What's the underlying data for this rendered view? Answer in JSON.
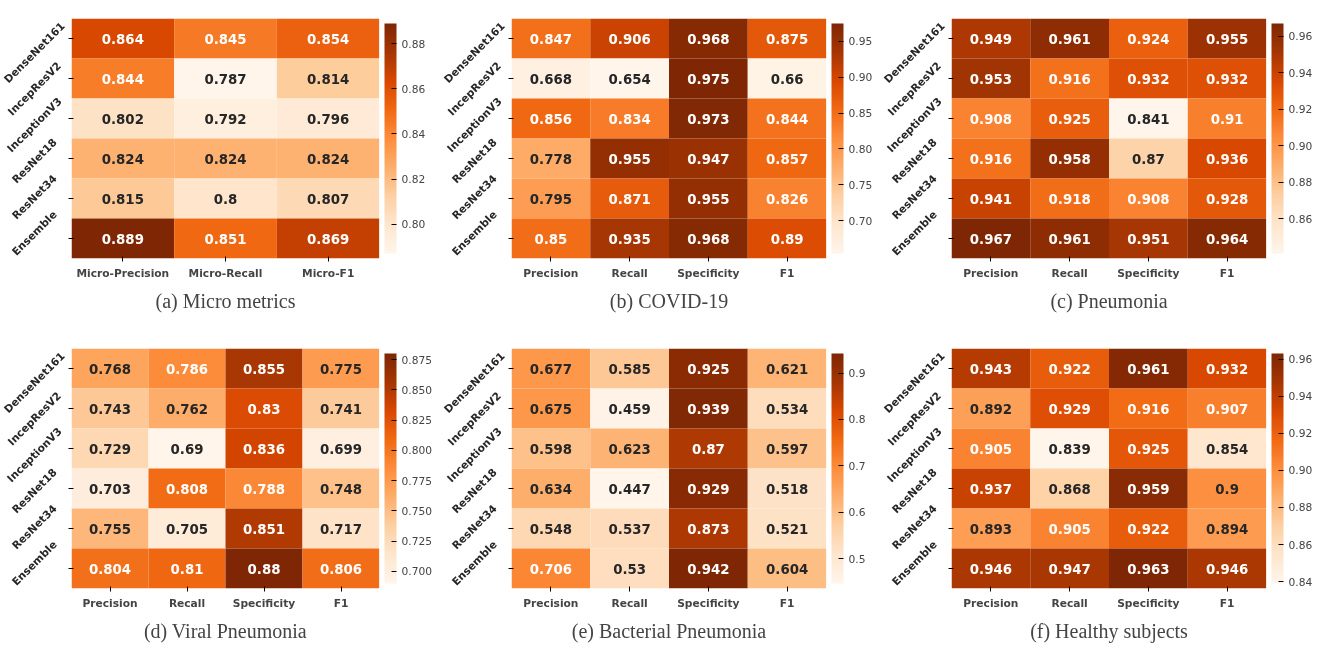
{
  "chart_data": [
    {
      "type": "heatmap",
      "title": "(a) Micro metrics",
      "categories": [
        "Micro-Precision",
        "Micro-Recall",
        "Micro-F1"
      ],
      "y_categories": [
        "DenseNet161",
        "IncepResV2",
        "InceptionV3",
        "ResNet18",
        "ResNet34",
        "Ensemble"
      ],
      "cells": [
        [
          0.864,
          0.845,
          0.854
        ],
        [
          0.844,
          0.787,
          0.814
        ],
        [
          0.802,
          0.792,
          0.796
        ],
        [
          0.824,
          0.824,
          0.824
        ],
        [
          0.815,
          0.8,
          0.807
        ],
        [
          0.889,
          0.851,
          0.869
        ]
      ],
      "clim": [
        0.787,
        0.889
      ],
      "cticks": [
        {
          "value": 0.8,
          "label": "0.80"
        },
        {
          "value": 0.82,
          "label": "0.82"
        },
        {
          "value": 0.84,
          "label": "0.84"
        },
        {
          "value": 0.86,
          "label": "0.86"
        },
        {
          "value": 0.88,
          "label": "0.88"
        }
      ],
      "data_labels": true
    },
    {
      "type": "heatmap",
      "title": "(b) COVID-19",
      "categories": [
        "Precision",
        "Recall",
        "Specificity",
        "F1"
      ],
      "y_categories": [
        "DenseNet161",
        "IncepResV2",
        "InceptionV3",
        "ResNet18",
        "ResNet34",
        "Ensemble"
      ],
      "cells": [
        [
          0.847,
          0.906,
          0.968,
          0.875
        ],
        [
          0.668,
          0.654,
          0.975,
          0.66
        ],
        [
          0.856,
          0.834,
          0.973,
          0.844
        ],
        [
          0.778,
          0.955,
          0.947,
          0.857
        ],
        [
          0.795,
          0.871,
          0.955,
          0.826
        ],
        [
          0.85,
          0.935,
          0.968,
          0.89
        ]
      ],
      "clim": [
        0.654,
        0.975
      ],
      "cticks": [
        {
          "value": 0.7,
          "label": "0.70"
        },
        {
          "value": 0.75,
          "label": "0.75"
        },
        {
          "value": 0.8,
          "label": "0.80"
        },
        {
          "value": 0.85,
          "label": "0.85"
        },
        {
          "value": 0.9,
          "label": "0.90"
        },
        {
          "value": 0.95,
          "label": "0.95"
        }
      ],
      "data_labels": true
    },
    {
      "type": "heatmap",
      "title": "(c) Pneumonia",
      "categories": [
        "Precision",
        "Recall",
        "Specificity",
        "F1"
      ],
      "y_categories": [
        "DenseNet161",
        "IncepResV2",
        "InceptionV3",
        "ResNet18",
        "ResNet34",
        "Ensemble"
      ],
      "cells": [
        [
          0.949,
          0.961,
          0.924,
          0.955
        ],
        [
          0.953,
          0.916,
          0.932,
          0.932
        ],
        [
          0.908,
          0.925,
          0.841,
          0.91
        ],
        [
          0.916,
          0.958,
          0.87,
          0.936
        ],
        [
          0.941,
          0.918,
          0.908,
          0.928
        ],
        [
          0.967,
          0.961,
          0.951,
          0.964
        ]
      ],
      "clim": [
        0.841,
        0.967
      ],
      "cticks": [
        {
          "value": 0.86,
          "label": "0.86"
        },
        {
          "value": 0.88,
          "label": "0.88"
        },
        {
          "value": 0.9,
          "label": "0.90"
        },
        {
          "value": 0.92,
          "label": "0.92"
        },
        {
          "value": 0.94,
          "label": "0.94"
        },
        {
          "value": 0.96,
          "label": "0.96"
        }
      ],
      "data_labels": true
    },
    {
      "type": "heatmap",
      "title": "(d) Viral Pneumonia",
      "categories": [
        "Precision",
        "Recall",
        "Specificity",
        "F1"
      ],
      "y_categories": [
        "DenseNet161",
        "IncepResV2",
        "InceptionV3",
        "ResNet18",
        "ResNet34",
        "Ensemble"
      ],
      "cells": [
        [
          0.768,
          0.786,
          0.855,
          0.775
        ],
        [
          0.743,
          0.762,
          0.83,
          0.741
        ],
        [
          0.729,
          0.69,
          0.836,
          0.699
        ],
        [
          0.703,
          0.808,
          0.788,
          0.748
        ],
        [
          0.755,
          0.705,
          0.851,
          0.717
        ],
        [
          0.804,
          0.81,
          0.88,
          0.806
        ]
      ],
      "clim": [
        0.69,
        0.88
      ],
      "cticks": [
        {
          "value": 0.7,
          "label": "0.700"
        },
        {
          "value": 0.725,
          "label": "0.725"
        },
        {
          "value": 0.75,
          "label": "0.750"
        },
        {
          "value": 0.775,
          "label": "0.775"
        },
        {
          "value": 0.8,
          "label": "0.800"
        },
        {
          "value": 0.825,
          "label": "0.825"
        },
        {
          "value": 0.85,
          "label": "0.850"
        },
        {
          "value": 0.875,
          "label": "0.875"
        }
      ],
      "data_labels": true
    },
    {
      "type": "heatmap",
      "title": "(e) Bacterial Pneumonia",
      "categories": [
        "Precision",
        "Recall",
        "Specificity",
        "F1"
      ],
      "y_categories": [
        "DenseNet161",
        "IncepResV2",
        "InceptionV3",
        "ResNet18",
        "ResNet34",
        "Ensemble"
      ],
      "cells": [
        [
          0.677,
          0.585,
          0.925,
          0.621
        ],
        [
          0.675,
          0.459,
          0.939,
          0.534
        ],
        [
          0.598,
          0.623,
          0.87,
          0.597
        ],
        [
          0.634,
          0.447,
          0.929,
          0.518
        ],
        [
          0.548,
          0.537,
          0.873,
          0.521
        ],
        [
          0.706,
          0.53,
          0.942,
          0.604
        ]
      ],
      "clim": [
        0.447,
        0.942
      ],
      "cticks": [
        0.5,
        0.6,
        0.7,
        0.8,
        0.9
      ],
      "data_labels": true
    },
    {
      "type": "heatmap",
      "title": "(f) Healthy subjects",
      "categories": [
        "Precision",
        "Recall",
        "Specificity",
        "F1"
      ],
      "y_categories": [
        "DenseNet161",
        "IncepResV2",
        "InceptionV3",
        "ResNet18",
        "ResNet34",
        "Ensemble"
      ],
      "cells": [
        [
          0.943,
          0.922,
          0.961,
          0.932
        ],
        [
          0.892,
          0.929,
          0.916,
          0.907
        ],
        [
          0.905,
          0.839,
          0.925,
          0.854
        ],
        [
          0.937,
          0.868,
          0.959,
          0.9
        ],
        [
          0.893,
          0.905,
          0.922,
          0.894
        ],
        [
          0.946,
          0.947,
          0.963,
          0.946
        ]
      ],
      "clim": [
        0.839,
        0.963
      ],
      "cticks": [
        {
          "value": 0.84,
          "label": "0.84"
        },
        {
          "value": 0.86,
          "label": "0.86"
        },
        {
          "value": 0.88,
          "label": "0.88"
        },
        {
          "value": 0.9,
          "label": "0.90"
        },
        {
          "value": 0.92,
          "label": "0.92"
        },
        {
          "value": 0.94,
          "label": "0.94"
        },
        {
          "value": 0.96,
          "label": "0.96"
        }
      ],
      "data_labels": true
    }
  ]
}
